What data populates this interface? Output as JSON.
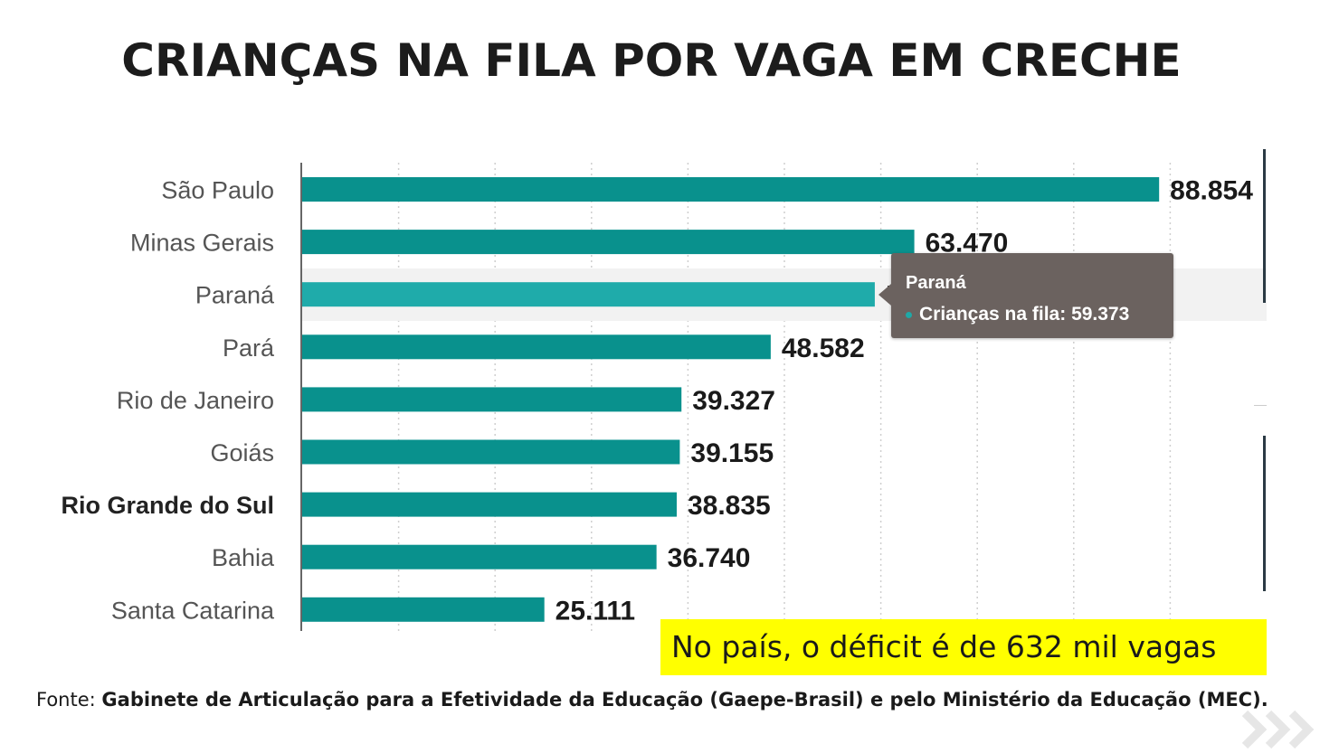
{
  "title": "CRIANÇAS NA FILA POR VAGA EM CRECHE",
  "chart_data": {
    "type": "bar",
    "orientation": "horizontal",
    "title": "CRIANÇAS NA FILA POR VAGA EM CRECHE",
    "categories": [
      "São Paulo",
      "Minas Gerais",
      "Paraná",
      "Pará",
      "Rio de Janeiro",
      "Goiás",
      "Rio Grande do Sul",
      "Bahia",
      "Santa Catarina"
    ],
    "values": [
      88854,
      63470,
      59373,
      48582,
      39327,
      39155,
      38835,
      36740,
      25111
    ],
    "value_labels": [
      "88.854",
      "63.470",
      "59.373",
      "48.582",
      "39.327",
      "39.155",
      "38.835",
      "36.740",
      "25.111"
    ],
    "highlighted_category": "Rio Grande do Sul",
    "hovered_category": "Paraná",
    "xlim": [
      0,
      100000
    ],
    "grid": true,
    "bar_color": "#09918d",
    "hover_bar_color": "#1fabaa",
    "tooltip": {
      "title": "Paraná",
      "series_label": "Crianças na fila",
      "value": "59.373"
    }
  },
  "callout": "No país, o déficit é de 632 mil vagas",
  "source": {
    "prefix": "Fonte: ",
    "text": "Gabinete de Articulação para a Efetividade da Educação (Gaepe-Brasil) e pelo Ministério da Educação (MEC)."
  },
  "colors": {
    "bar": "#09918d",
    "bar_hover": "#1fabaa",
    "callout_bg": "#ffff00",
    "tooltip_bg": "#6b625f"
  },
  "icons": {
    "decoration": "triple-chevron-right-icon"
  }
}
